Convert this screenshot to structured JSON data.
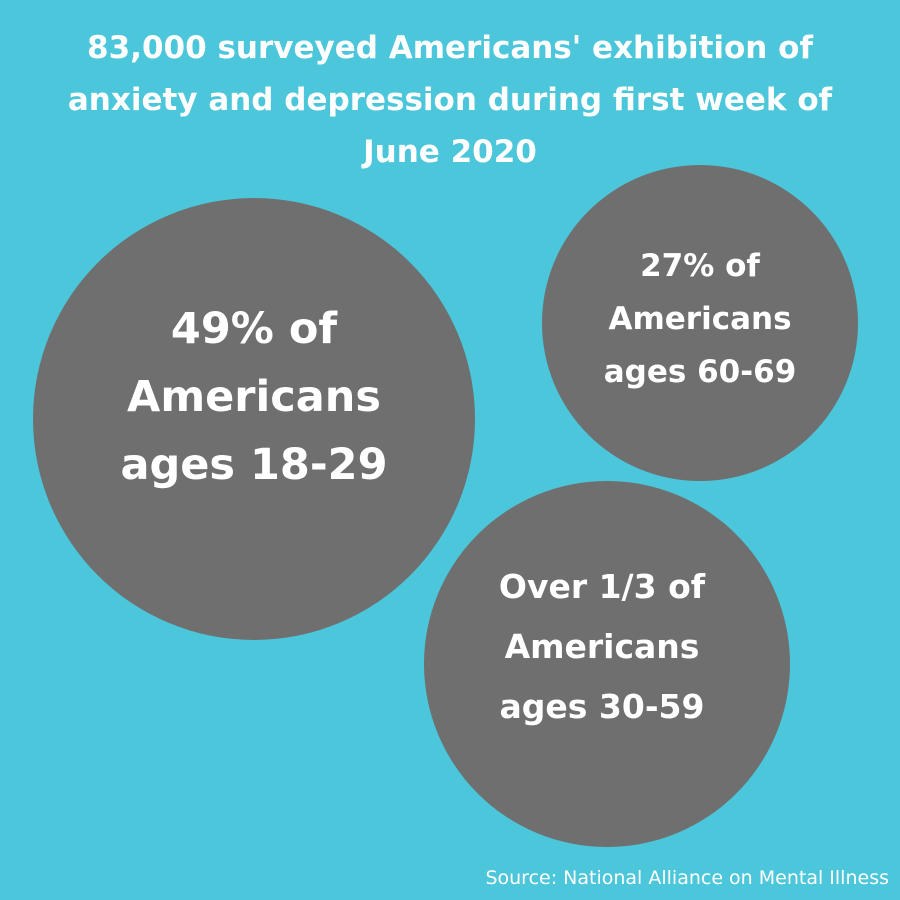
{
  "colors": {
    "background": "#4cc6da",
    "bubble": "#6f6f6f",
    "text": "#ffffff"
  },
  "title": {
    "lines": [
      "83,000 surveyed Americans' exhibition of",
      "anxiety and depression during first week of",
      "June 2020"
    ]
  },
  "stats": [
    {
      "lines": [
        "49% of",
        "Americans",
        "ages 18-29"
      ]
    },
    {
      "lines": [
        "27% of",
        "Americans",
        "ages 60-69"
      ]
    },
    {
      "lines": [
        "Over 1/3 of",
        "Americans",
        "ages 30-59"
      ]
    }
  ],
  "source": "Source: National Alliance on Mental Illness"
}
